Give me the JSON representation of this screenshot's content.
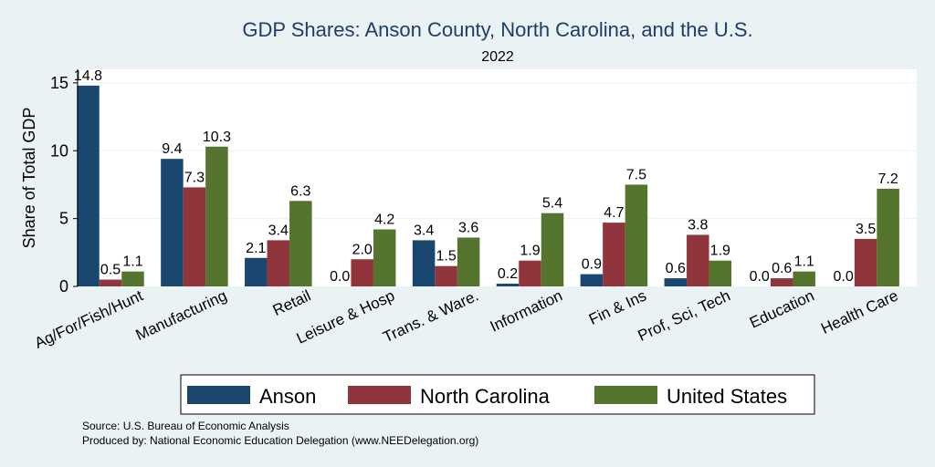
{
  "chart_data": {
    "type": "bar",
    "title": "GDP Shares: Anson County, North Carolina, and the U.S.",
    "subtitle": "2022",
    "xlabel": "",
    "ylabel": "Share of Total GDP",
    "ylim": [
      0,
      16
    ],
    "yticks": [
      0,
      5,
      10,
      15
    ],
    "grid": true,
    "legend_position": "bottom",
    "categories": [
      "Ag/For/Fish/Hunt",
      "Manufacturing",
      "Retail",
      "Leisure & Hosp",
      "Trans. & Ware.",
      "Information",
      "Fin & Ins",
      "Prof, Sci, Tech",
      "Education",
      "Health Care"
    ],
    "series": [
      {
        "name": "Anson",
        "color": "#1a476f",
        "values": [
          14.8,
          9.4,
          2.1,
          0.0,
          3.4,
          0.2,
          0.9,
          0.6,
          0.0,
          0.0
        ],
        "labels": [
          "14.8",
          "9.4",
          "2.1",
          "0.0",
          "3.4",
          "0.2",
          "0.9",
          "0.6",
          "0.0",
          "0.0"
        ]
      },
      {
        "name": "North Carolina",
        "color": "#90353b",
        "values": [
          0.5,
          7.3,
          3.4,
          2.0,
          1.5,
          1.9,
          4.7,
          3.8,
          0.6,
          3.5
        ],
        "labels": [
          "0.5",
          "7.3",
          "3.4",
          "2.0",
          "1.5",
          "1.9",
          "4.7",
          "3.8",
          "0.6",
          "3.5"
        ]
      },
      {
        "name": "United States",
        "color": "#55752f",
        "values": [
          1.1,
          10.3,
          6.3,
          4.2,
          3.6,
          5.4,
          7.5,
          1.9,
          1.1,
          7.2
        ],
        "labels": [
          "1.1",
          "10.3",
          "6.3",
          "4.2",
          "3.6",
          "5.4",
          "7.5",
          "1.9",
          "1.1",
          "7.2"
        ]
      }
    ]
  },
  "footer": {
    "source": "Source: U.S. Bureau of Economic Analysis",
    "produced_by": "Produced by: National Economic Education Delegation (www.NEEDelegation.org)"
  }
}
